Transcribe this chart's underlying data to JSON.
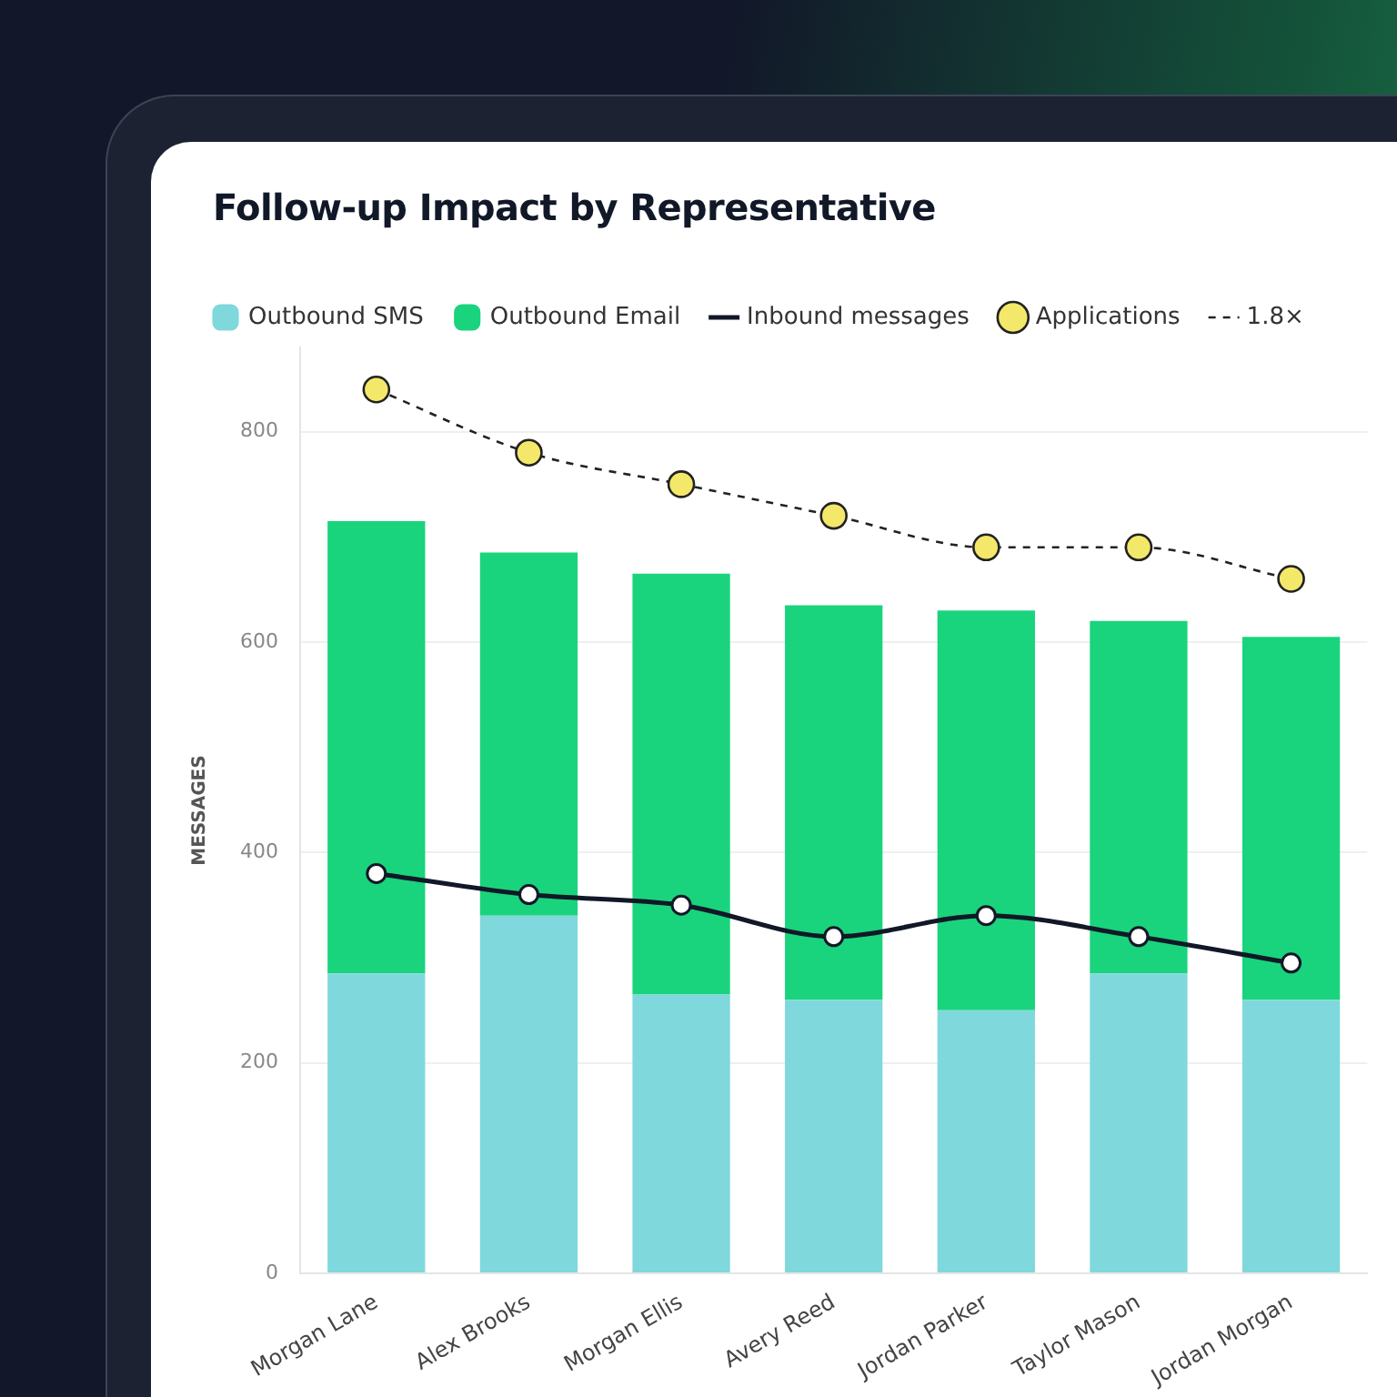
{
  "chart_data": {
    "type": "bar",
    "title": "Follow-up Impact by Representative",
    "ylabel": "MESSAGES",
    "categories": [
      "Morgan Lane",
      "Alex Brooks",
      "Morgan Ellis",
      "Avery Reed",
      "Jordan Parker",
      "Taylor Mason",
      "Jordan Morgan"
    ],
    "stacked": true,
    "series": [
      {
        "name": "Outbound SMS",
        "type": "bar",
        "color": "#7fd8dc",
        "values": [
          285,
          340,
          265,
          260,
          250,
          285,
          260
        ]
      },
      {
        "name": "Outbound Email",
        "type": "bar",
        "color": "#19d47c",
        "values": [
          430,
          345,
          400,
          375,
          380,
          335,
          345
        ]
      },
      {
        "name": "Inbound messages",
        "type": "line",
        "color": "#111827",
        "marker": "circle",
        "line_style": "solid",
        "values": [
          380,
          360,
          350,
          320,
          340,
          320,
          295
        ]
      },
      {
        "name": "Applications",
        "type": "scatter",
        "color": "#f3e86a",
        "marker": "circle",
        "values": [
          840,
          780,
          750,
          720,
          690,
          690,
          660
        ]
      },
      {
        "name": "1.8×",
        "type": "line",
        "color": "#222222",
        "marker": "none",
        "line_style": "dashed",
        "values": [
          840,
          780,
          750,
          720,
          690,
          690,
          660
        ]
      }
    ],
    "ylim": [
      0,
      880
    ],
    "yticks": [
      0,
      200,
      400,
      600,
      800
    ],
    "grid": "y",
    "legend": "top left"
  }
}
